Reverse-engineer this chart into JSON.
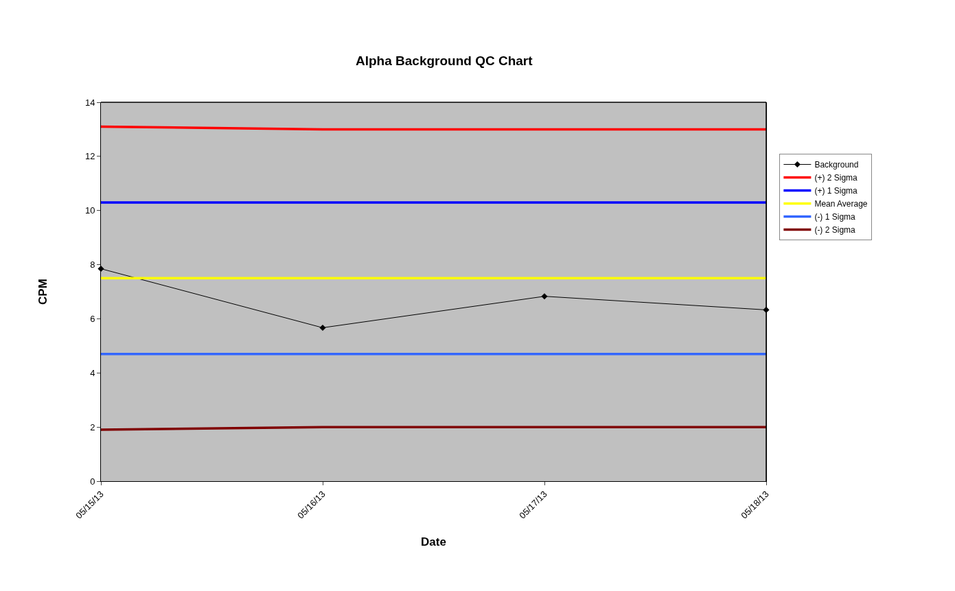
{
  "chart_data": {
    "type": "line",
    "title": "Alpha Background QC Chart",
    "xlabel": "Date",
    "ylabel": "CPM",
    "categories": [
      "05/15/13",
      "05/16/13",
      "05/17/13",
      "05/18/13"
    ],
    "series": [
      {
        "name": "Background",
        "color": "#000000",
        "values": [
          7.85,
          5.67,
          6.83,
          6.33
        ],
        "marker": "diamond"
      },
      {
        "name": "(+) 2 Sigma",
        "color": "#ff0000",
        "values": [
          13.1,
          13.0,
          13.0,
          13.0
        ],
        "marker": "none"
      },
      {
        "name": "(+) 1 Sigma",
        "color": "#0000ff",
        "values": [
          10.3,
          10.3,
          10.3,
          10.3
        ],
        "marker": "none"
      },
      {
        "name": "Mean Average",
        "color": "#ffff00",
        "values": [
          7.5,
          7.5,
          7.5,
          7.5
        ],
        "marker": "none"
      },
      {
        "name": "(-) 1 Sigma",
        "color": "#3366ff",
        "values": [
          4.7,
          4.7,
          4.7,
          4.7
        ],
        "marker": "none"
      },
      {
        "name": "(-) 2 Sigma",
        "color": "#800000",
        "values": [
          1.9,
          2.0,
          2.0,
          2.0
        ],
        "marker": "none"
      }
    ],
    "ylim": [
      0,
      14
    ],
    "yticks": [
      0,
      2,
      4,
      6,
      8,
      10,
      12,
      14
    ],
    "grid": false,
    "legend": "right",
    "line_style": "solid"
  }
}
